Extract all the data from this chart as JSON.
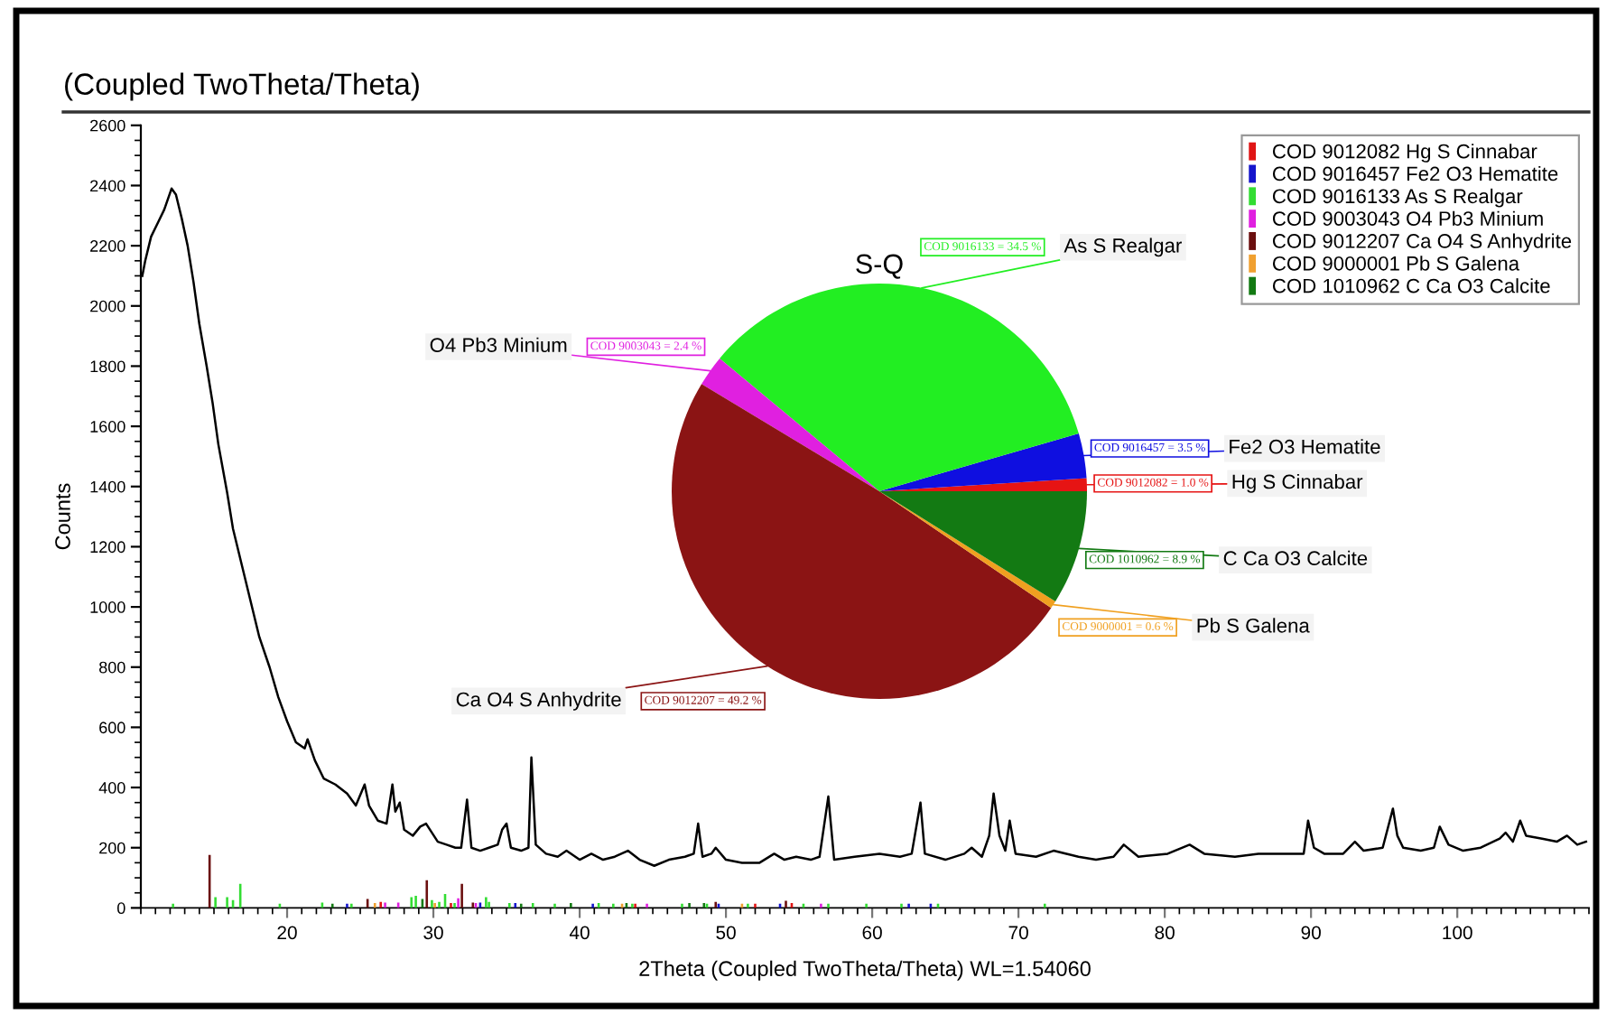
{
  "chart_data": [
    {
      "type": "line",
      "title": "(Coupled TwoTheta/Theta)",
      "xlabel": "2Theta (Coupled TwoTheta/Theta) WL=1.54060",
      "ylabel": "Counts",
      "xlim": [
        10,
        109
      ],
      "xticks": [
        20,
        30,
        40,
        50,
        60,
        70,
        80,
        90,
        100
      ],
      "ylim": [
        0,
        2600
      ],
      "yticks": [
        0,
        200,
        400,
        600,
        800,
        1000,
        1200,
        1400,
        1600,
        1800,
        2000,
        2200,
        2400,
        2600
      ],
      "legend": "top right",
      "series": [
        {
          "type": "line",
          "color": "#000000",
          "x": [
            10.1,
            10.3,
            10.7,
            11.2,
            11.6,
            12.1,
            12.4,
            12.8,
            13.2,
            13.6,
            14.0,
            14.5,
            14.9,
            15.3,
            15.9,
            16.3,
            16.9,
            17.5,
            18.1,
            18.8,
            19.4,
            20.0,
            20.6,
            21.2,
            21.4,
            21.9,
            22.5,
            23.3,
            24.1,
            24.7,
            25.3,
            25.6,
            26.2,
            26.8,
            27.2,
            27.4,
            27.7,
            28.0,
            28.6,
            29.1,
            29.5,
            29.9,
            30.3,
            30.9,
            31.5,
            31.9,
            32.3,
            32.6,
            33.2,
            33.8,
            34.4,
            34.7,
            35.0,
            35.3,
            36.0,
            36.5,
            36.7,
            37.0,
            37.7,
            38.5,
            39.1,
            40.0,
            40.8,
            41.6,
            42.4,
            43.3,
            44.1,
            45.1,
            46.1,
            47.2,
            47.8,
            48.1,
            48.4,
            49.0,
            49.3,
            50.0,
            51.1,
            52.3,
            53.3,
            54.0,
            54.8,
            55.8,
            56.4,
            57.0,
            57.4,
            58.8,
            60.5,
            61.9,
            62.7,
            63.3,
            63.6,
            65.0,
            66.3,
            66.8,
            67.5,
            68.0,
            68.3,
            68.7,
            69.1,
            69.4,
            69.8,
            71.2,
            72.4,
            74.1,
            75.3,
            76.5,
            77.2,
            78.2,
            80.2,
            81.7,
            82.7,
            84.8,
            86.4,
            88.1,
            89.5,
            89.8,
            90.2,
            90.9,
            92.2,
            93.0,
            93.6,
            94.9,
            95.6,
            95.9,
            96.3,
            97.5,
            98.4,
            98.8,
            99.4,
            100.4,
            101.6,
            102.9,
            103.3,
            103.8,
            104.3,
            104.7,
            105.8,
            106.8,
            107.5,
            108.2,
            108.8
          ],
          "values": [
            2100,
            2150,
            2230,
            2280,
            2320,
            2390,
            2370,
            2290,
            2200,
            2080,
            1940,
            1800,
            1680,
            1540,
            1380,
            1260,
            1140,
            1020,
            900,
            800,
            700,
            620,
            550,
            530,
            560,
            490,
            430,
            410,
            380,
            340,
            410,
            340,
            290,
            280,
            410,
            320,
            350,
            260,
            240,
            270,
            280,
            250,
            220,
            210,
            200,
            200,
            360,
            200,
            190,
            200,
            210,
            260,
            280,
            200,
            190,
            200,
            500,
            210,
            180,
            170,
            190,
            160,
            180,
            160,
            170,
            190,
            160,
            140,
            160,
            170,
            180,
            280,
            170,
            180,
            200,
            160,
            150,
            150,
            180,
            160,
            170,
            160,
            170,
            370,
            160,
            170,
            180,
            170,
            180,
            350,
            180,
            160,
            180,
            200,
            170,
            240,
            380,
            240,
            190,
            290,
            180,
            170,
            190,
            170,
            160,
            170,
            210,
            170,
            180,
            210,
            180,
            170,
            180,
            180,
            180,
            290,
            200,
            180,
            180,
            220,
            190,
            200,
            330,
            240,
            200,
            190,
            200,
            270,
            210,
            190,
            200,
            230,
            250,
            220,
            290,
            240,
            230,
            220,
            240,
            210,
            220
          ]
        },
        {
          "type": "bar",
          "name": "COD 9012082 Hg S Cinnabar",
          "color": "#e01515",
          "x": [
            26.4,
            31.2,
            43.8,
            52.0,
            54.5
          ],
          "values": [
            20,
            16,
            14,
            14,
            16
          ]
        },
        {
          "type": "bar",
          "name": "COD 9016457 Fe2 O3 Hematite",
          "color": "#1515cc",
          "x": [
            24.1,
            33.2,
            35.6,
            40.9,
            49.5,
            53.7,
            62.5,
            64.0
          ],
          "values": [
            14,
            18,
            16,
            14,
            14,
            14,
            14,
            14
          ]
        },
        {
          "type": "bar",
          "name": "COD 9016133 As S Realgar",
          "color": "#33dd33",
          "x": [
            12.2,
            15.1,
            15.9,
            16.3,
            16.8,
            19.5,
            22.4,
            24.4,
            28.5,
            28.8,
            29.9,
            30.4,
            30.8,
            31.45,
            33.6,
            33.8,
            35.2,
            36.8,
            38.3,
            41.3,
            42.3,
            43.6,
            47.0,
            48.7,
            51.5,
            55.3,
            57.0,
            59.6,
            62.0,
            64.5,
            71.8
          ],
          "values": [
            14,
            36,
            36,
            26,
            80,
            14,
            18,
            14,
            36,
            40,
            26,
            20,
            46,
            16,
            36,
            20,
            16,
            16,
            14,
            16,
            14,
            14,
            14,
            14,
            14,
            14,
            14,
            14,
            14,
            14,
            14
          ]
        },
        {
          "type": "bar",
          "name": "COD 9003043 O4 Pb3 Minium",
          "color": "#e020e0",
          "x": [
            26.7,
            27.6,
            31.7,
            32.9,
            44.6,
            56.5
          ],
          "values": [
            18,
            18,
            32,
            16,
            14,
            14
          ]
        },
        {
          "type": "bar",
          "name": "COD 9012207 Ca O4 S Anhydrite",
          "color": "#6b0f0f",
          "x": [
            14.7,
            25.5,
            29.55,
            31.95,
            32.7,
            49.3,
            54.1
          ],
          "values": [
            176,
            30,
            92,
            80,
            18,
            20,
            24
          ]
        },
        {
          "type": "bar",
          "name": "COD 9000001 Pb S Galena",
          "color": "#f0a030",
          "x": [
            26.0,
            30.1,
            42.9,
            51.1
          ],
          "values": [
            16,
            16,
            14,
            14
          ]
        },
        {
          "type": "bar",
          "name": "COD 1010962 C Ca O3 Calcite",
          "color": "#137a13",
          "x": [
            23.1,
            29.25,
            36.0,
            39.4,
            43.2,
            47.5,
            48.5
          ],
          "values": [
            14,
            30,
            14,
            16,
            16,
            16,
            16
          ]
        }
      ]
    },
    {
      "type": "pie",
      "title": "S-Q",
      "categories": [
        "Hg S Cinnabar",
        "Fe2 O3 Hematite",
        "As S Realgar",
        "O4 Pb3 Minium",
        "Ca O4 S Anhydrite",
        "Pb S Galena",
        "C Ca O3 Calcite"
      ],
      "values": [
        1.0,
        3.5,
        34.5,
        2.4,
        49.2,
        0.6,
        8.9
      ],
      "colors": [
        "#e61414",
        "#0f0fe0",
        "#22ee22",
        "#e020e0",
        "#8b1414",
        "#f0a020",
        "#137a13"
      ],
      "value_labels": [
        "COD 9012082 = 1.0 %",
        "COD 9016457 = 3.5 %",
        "COD 9016133 = 34.5 %",
        "COD 9003043 = 2.4 %",
        "COD 9012207 = 49.2 %",
        "COD 9000001 = 0.6 %",
        "COD 1010962 = 8.9 %"
      ]
    }
  ]
}
